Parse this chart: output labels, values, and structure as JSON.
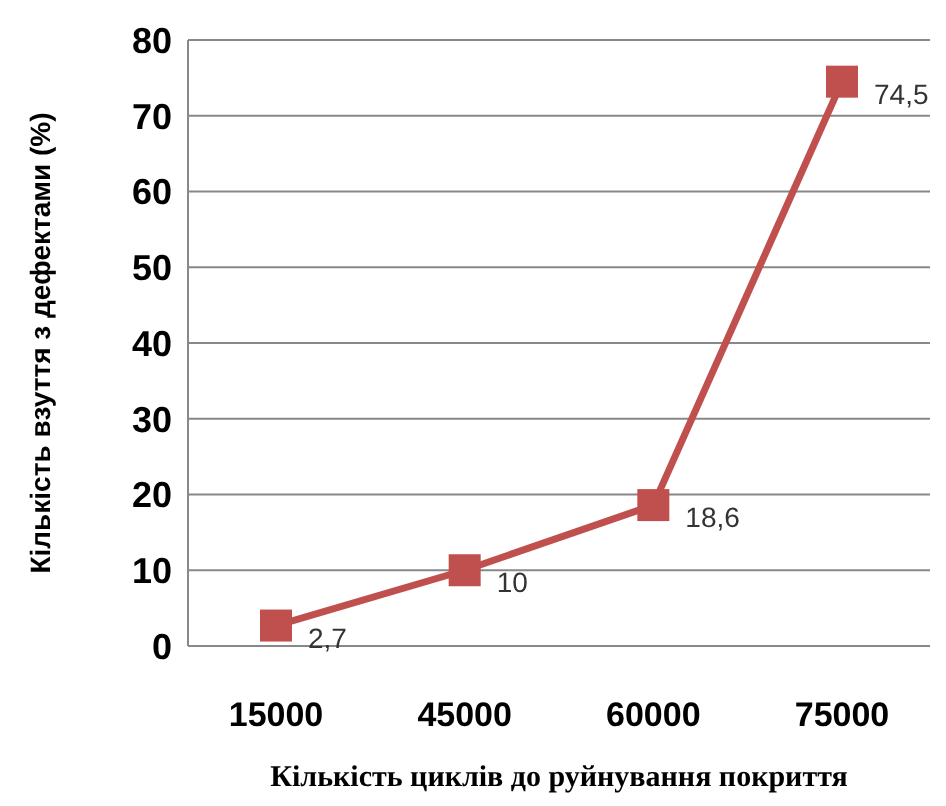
{
  "chart_data": {
    "type": "line",
    "categories": [
      "15000",
      "45000",
      "60000",
      "75000"
    ],
    "series": [
      {
        "color": "#c0504d",
        "values": [
          2.7,
          10,
          18.6,
          74.5
        ],
        "value_labels": [
          "2,7",
          "10",
          "18,6",
          "74,5"
        ]
      }
    ],
    "xlabel": "Кількість циклів до руйнування покриття",
    "ylabel": "Кількість взуття з дефектами (%)",
    "ylim": [
      0,
      80
    ],
    "yticks": [
      0,
      10,
      20,
      30,
      40,
      50,
      60,
      70,
      80
    ],
    "grid": "y",
    "marker": "square",
    "line_style": "solid",
    "legend": false
  }
}
